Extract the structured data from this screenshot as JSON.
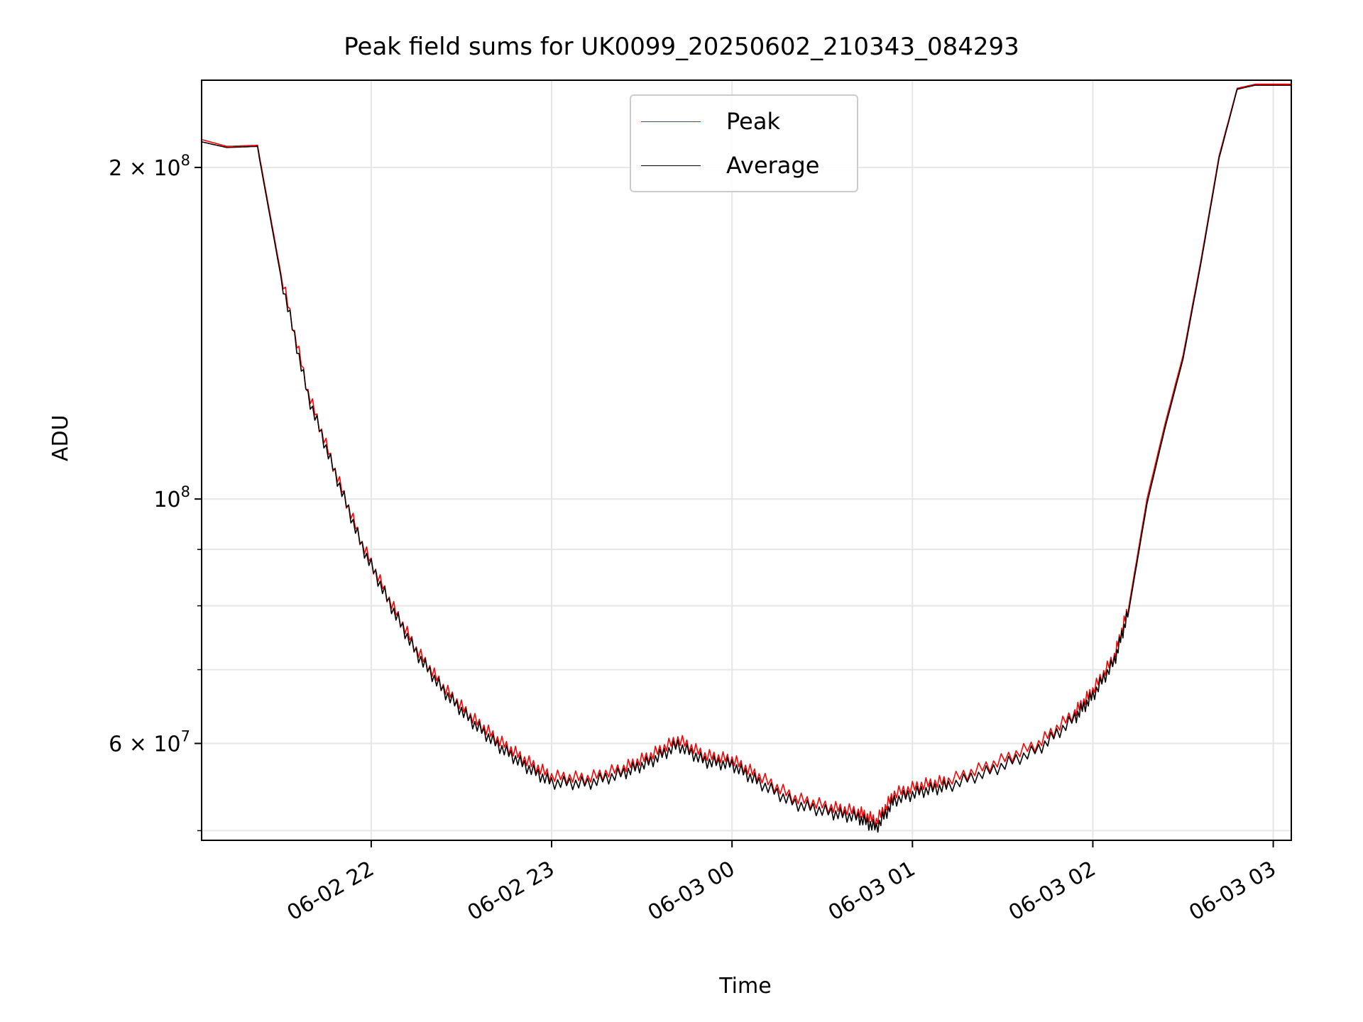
{
  "chart_data": {
    "type": "line",
    "title": "Peak field sums for UK0099_20250602_210343_084293",
    "xlabel": "Time",
    "ylabel": "ADU",
    "y_scale": "log",
    "ylim": [
      49000000,
      240000000
    ],
    "xlim_hours": [
      21.06,
      27.1
    ],
    "x_ticks": [
      {
        "label": "06-02 22",
        "hour": 22
      },
      {
        "label": "06-02 23",
        "hour": 23
      },
      {
        "label": "06-03 00",
        "hour": 24
      },
      {
        "label": "06-03 01",
        "hour": 25
      },
      {
        "label": "06-03 02",
        "hour": 26
      },
      {
        "label": "06-03 03",
        "hour": 27
      }
    ],
    "y_ticks_major": [
      {
        "label": "2 × 10⁸",
        "mantissa": "2 × 10",
        "exp": "8",
        "value": 200000000
      },
      {
        "label": "10⁸",
        "mantissa": "10",
        "exp": "8",
        "value": 100000000
      },
      {
        "label": "6 × 10⁷",
        "mantissa": "6 × 10",
        "exp": "7",
        "value": 60000000
      }
    ],
    "y_ticks_minor": [
      50000000,
      70000000,
      80000000,
      90000000
    ],
    "grid": true,
    "legend_position": "top-center",
    "series": [
      {
        "name": "Peak",
        "color": "#ff0000",
        "x": [
          21.06,
          21.2,
          21.37,
          21.38,
          21.5,
          21.65,
          21.8,
          21.95,
          22.1,
          22.25,
          22.4,
          22.55,
          22.7,
          22.85,
          23.0,
          23.2,
          23.4,
          23.55,
          23.7,
          23.85,
          24.0,
          24.15,
          24.35,
          24.55,
          24.7,
          24.8,
          24.9,
          25.05,
          25.2,
          25.45,
          25.7,
          25.9,
          26.0,
          26.12,
          26.2,
          26.3,
          26.4,
          26.5,
          26.6,
          26.7,
          26.8,
          26.9,
          27.1
        ],
        "values": [
          212000000,
          209000000,
          209500000,
          205000000,
          160000000,
          125000000,
          106000000,
          91000000,
          81000000,
          73000000,
          67500000,
          63500000,
          60500000,
          58000000,
          56000000,
          55800000,
          57000000,
          58500000,
          60500000,
          58500000,
          58000000,
          56000000,
          53500000,
          52500000,
          52000000,
          51000000,
          54000000,
          55000000,
          55500000,
          57500000,
          60000000,
          64000000,
          67000000,
          72000000,
          80000000,
          100000000,
          117000000,
          135000000,
          165000000,
          205000000,
          236000000,
          238000000,
          238000000
        ]
      },
      {
        "name": "Average",
        "color": "#000000",
        "x": [
          21.06,
          21.2,
          21.37,
          21.38,
          21.5,
          21.65,
          21.8,
          21.95,
          22.1,
          22.25,
          22.4,
          22.55,
          22.7,
          22.85,
          23.0,
          23.2,
          23.4,
          23.55,
          23.7,
          23.85,
          24.0,
          24.15,
          24.35,
          24.55,
          24.7,
          24.8,
          24.9,
          25.05,
          25.2,
          25.45,
          25.7,
          25.9,
          26.0,
          26.12,
          26.2,
          26.3,
          26.4,
          26.5,
          26.6,
          26.7,
          26.8,
          26.9,
          27.1
        ],
        "values": [
          211000000,
          208500000,
          209000000,
          204000000,
          159000000,
          124000000,
          105500000,
          90500000,
          80500000,
          72500000,
          67000000,
          63000000,
          59800000,
          57300000,
          55300000,
          55200000,
          56400000,
          57800000,
          59800000,
          57800000,
          57400000,
          55300000,
          52900000,
          51900000,
          51400000,
          50300000,
          53300000,
          54300000,
          54900000,
          56800000,
          59300000,
          63300000,
          66300000,
          71300000,
          79300000,
          99000000,
          116000000,
          134000000,
          164000000,
          204000000,
          235500000,
          237500000,
          237500000
        ]
      }
    ]
  }
}
